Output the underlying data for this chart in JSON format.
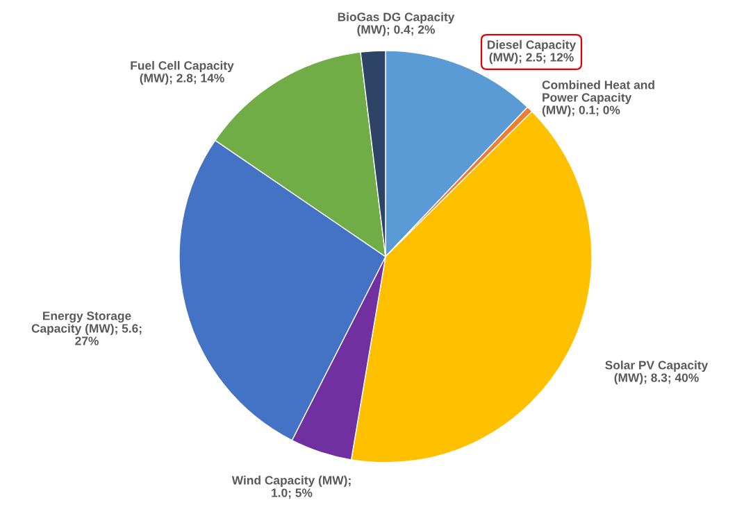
{
  "chart_data": {
    "type": "pie",
    "categories": [
      "Diesel Capacity (MW); 2.5; 12%",
      "Combined Heat and Power Capacity (MW); 0.1; 0%",
      "Solar PV Capacity (MW); 8.3; 40%",
      "Wind Capacity (MW); 1.0; 5%",
      "Energy Storage Capacity (MW); 5.6; 27%",
      "Fuel Cell Capacity (MW); 2.8; 14%",
      "BioGas DG Capacity (MW); 0.4; 2%"
    ],
    "values": [
      2.5,
      0.1,
      8.3,
      1.0,
      5.6,
      2.8,
      0.4
    ],
    "colors": [
      "#5b9bd5",
      "#ed7d31",
      "#ffc000",
      "#7030a0",
      "#4472c4",
      "#70ad47",
      "#2e4466"
    ],
    "legend": false
  }
}
